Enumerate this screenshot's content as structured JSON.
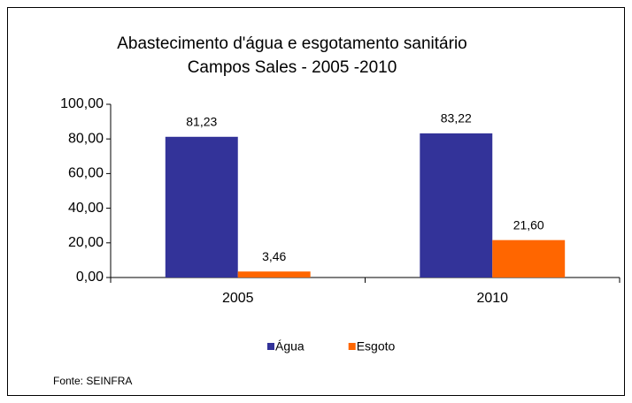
{
  "chart_data": {
    "type": "bar",
    "title": "Abastecimento d'água e esgotamento sanitário",
    "subtitle": "Campos Sales - 2005 -2010",
    "categories": [
      "2005",
      "2010"
    ],
    "series": [
      {
        "name": "Água",
        "color": "#333399",
        "values": [
          81.23,
          83.22
        ],
        "value_labels": [
          "81,23",
          "83,22"
        ]
      },
      {
        "name": "Esgoto",
        "color": "#ff6600",
        "values": [
          3.46,
          21.6
        ],
        "value_labels": [
          "3,46",
          "21,60"
        ]
      }
    ],
    "ylim": [
      0,
      100
    ],
    "yticks": [
      {
        "value": 0,
        "label": "0,00"
      },
      {
        "value": 20,
        "label": "20,00"
      },
      {
        "value": 40,
        "label": "40,00"
      },
      {
        "value": 60,
        "label": "60,00"
      },
      {
        "value": 80,
        "label": "80,00"
      },
      {
        "value": 100,
        "label": "100,00"
      }
    ],
    "grid": false,
    "legend": "bottom",
    "source": "Fonte: SEINFRA"
  }
}
